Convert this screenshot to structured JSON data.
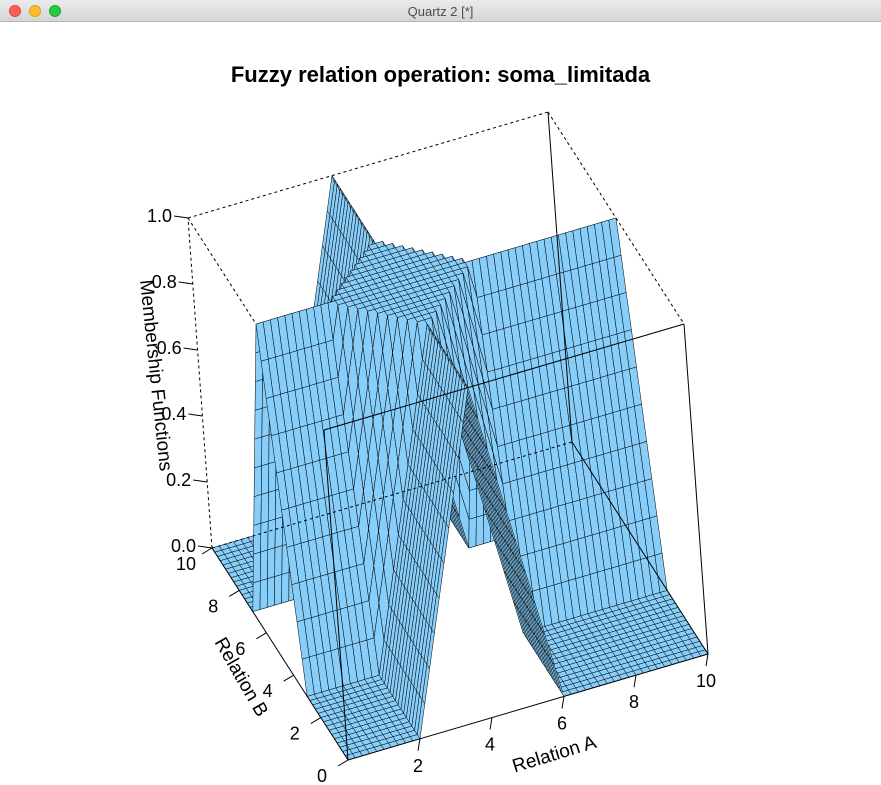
{
  "window": {
    "title": "Quartz 2 [*]"
  },
  "colors": {
    "surface": "#87cefa",
    "mesh": "#000000"
  },
  "chart_data": {
    "type": "surface",
    "title": "Fuzzy relation operation: soma_limitada",
    "xlabel": "Relation A",
    "ylabel": "Relation B",
    "zlabel": "Membership Functions",
    "xlim": [
      0,
      10
    ],
    "ylim": [
      0,
      10
    ],
    "zlim": [
      0,
      1
    ],
    "x_ticks": [
      "2",
      "4",
      "6",
      "8",
      "10"
    ],
    "y_ticks": [
      "0",
      "2",
      "4",
      "6",
      "8",
      "10"
    ],
    "z_ticks": [
      "0.0",
      "0.2",
      "0.4",
      "0.6",
      "0.8",
      "1.0"
    ],
    "series_a_breakpoints": [
      2,
      4,
      6
    ],
    "series_b_breakpoints": [
      3,
      5,
      7
    ],
    "operation": "soma_limitada"
  }
}
